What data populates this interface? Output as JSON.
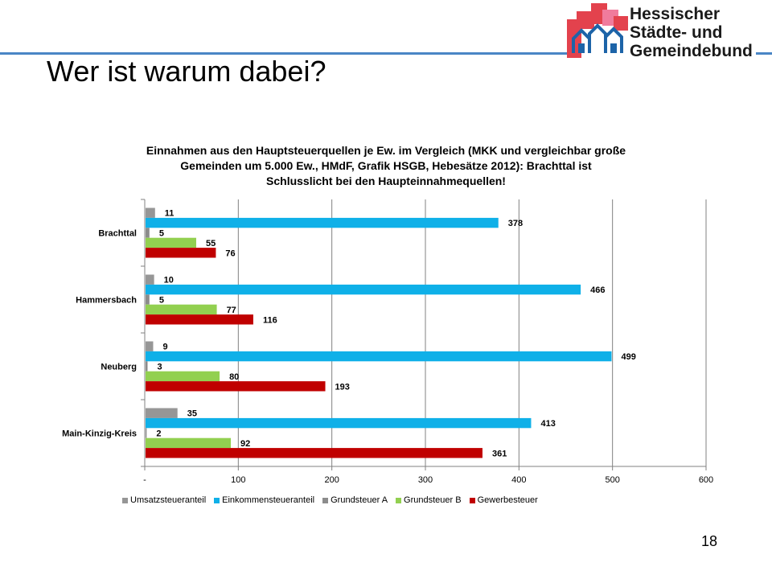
{
  "slide": {
    "title": "Wer ist warum dabei?",
    "page_number": "18"
  },
  "logo": {
    "line1": "Hessischer",
    "line2": "Städte- und",
    "line3": "Gemeindebund"
  },
  "colors": {
    "accent_line": "#4a86c5",
    "logo_red": "#e3424d",
    "logo_blue": "#1d64a8",
    "logo_pink": "#f07b9c"
  },
  "chart_data": {
    "type": "bar",
    "orientation": "horizontal",
    "title_lines": [
      "Einnahmen aus den Hauptsteuerquellen je Ew. im Vergleich (MKK und vergleichbar große",
      "Gemeinden um 5.000 Ew., HMdF, Grafik HSGB, Hebesätze 2012): Brachttal ist",
      "Schlusslicht bei den Haupteinnahmequellen!"
    ],
    "categories": [
      "Brachttal",
      "Hammersbach",
      "Neuberg",
      "Main-Kinzig-Kreis"
    ],
    "series": [
      {
        "name": "Umsatzsteueranteil",
        "color": "#969696",
        "values": [
          11,
          10,
          9,
          35
        ]
      },
      {
        "name": "Einkommensteueranteil",
        "color": "#0fb0e8",
        "values": [
          378,
          466,
          499,
          413
        ]
      },
      {
        "name": "Grundsteuer A",
        "color": "#8c8c8c",
        "values": [
          5,
          5,
          3,
          2
        ]
      },
      {
        "name": "Grundsteuer B",
        "color": "#92d050",
        "values": [
          55,
          77,
          80,
          92
        ]
      },
      {
        "name": "Gewerbesteuer",
        "color": "#c00000",
        "values": [
          76,
          116,
          193,
          361
        ]
      }
    ],
    "xlim": [
      0,
      600
    ],
    "x_ticks": [
      0,
      100,
      200,
      300,
      400,
      500,
      600
    ],
    "x_tick_labels": [
      "-",
      "100",
      "200",
      "300",
      "400",
      "500",
      "600"
    ],
    "grid": "vertical",
    "legend_position": "bottom"
  }
}
